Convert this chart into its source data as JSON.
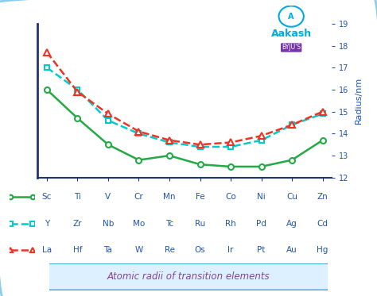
{
  "x_labels": [
    "Sc",
    "Ti",
    "V",
    "Cr",
    "Mn",
    "Fe",
    "Co",
    "Ni",
    "Cu",
    "Zn"
  ],
  "x_labels_2": [
    "Y",
    "Zr",
    "Nb",
    "Mo",
    "Tc",
    "Ru",
    "Rh",
    "Pd",
    "Ag",
    "Cd"
  ],
  "x_labels_3": [
    "La",
    "Hf",
    "Ta",
    "W",
    "Re",
    "Os",
    "Ir",
    "Pt",
    "Au",
    "Hg"
  ],
  "series1_values": [
    16.0,
    14.7,
    13.5,
    12.8,
    13.0,
    12.6,
    12.5,
    12.5,
    12.8,
    13.7
  ],
  "series2_values": [
    17.0,
    16.0,
    14.6,
    14.0,
    13.6,
    13.4,
    13.4,
    13.7,
    14.4,
    14.9
  ],
  "series3_values": [
    17.7,
    15.9,
    14.9,
    14.1,
    13.7,
    13.5,
    13.6,
    13.9,
    14.4,
    15.0
  ],
  "series1_color": "#22aa44",
  "series2_color": "#00cccc",
  "series3_color": "#ee3322",
  "ylabel": "Radius/nm",
  "ylim": [
    12,
    19
  ],
  "yticks": [
    12,
    13,
    14,
    15,
    16,
    17,
    18,
    19
  ],
  "title": "Atomic radii of transition elements",
  "bg_color": "#ffffff",
  "outer_border_color": "#88ccee",
  "label_color": "#2255aa",
  "title_box_edge": "#44aadd",
  "title_box_face": "#ddf0ff",
  "title_font_color": "#884499",
  "aakash_blue": "#00aadd",
  "aakash_purple": "#7733aa"
}
